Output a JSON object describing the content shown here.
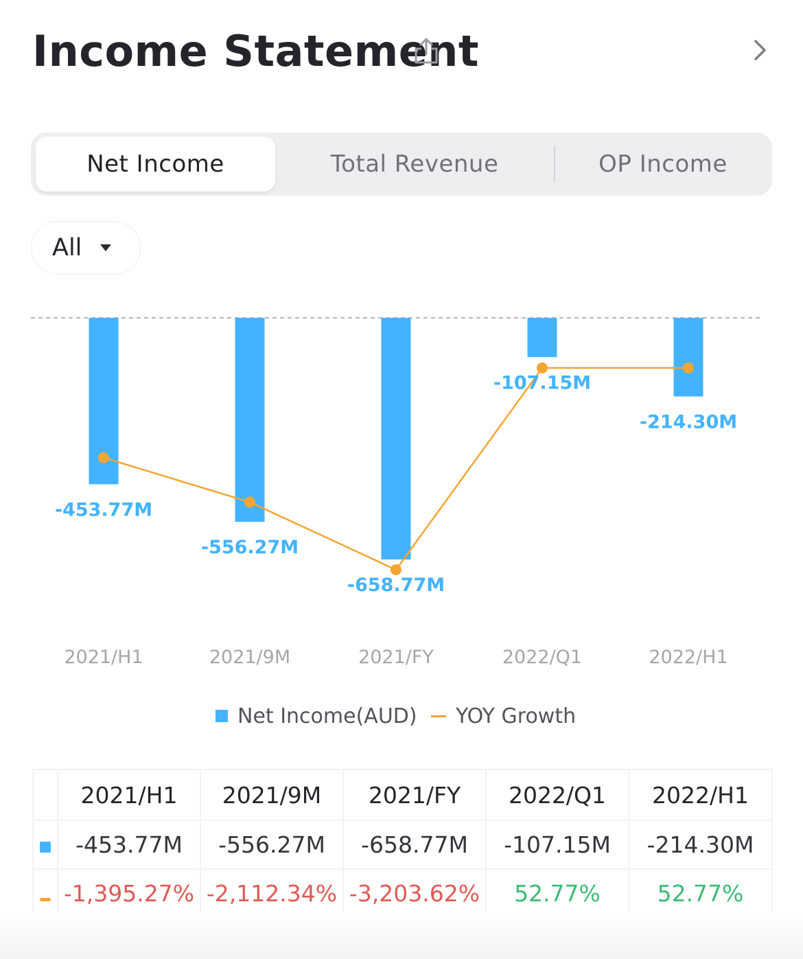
{
  "header": {
    "title": "Income Statement",
    "share_icon": "share-icon",
    "chevron_icon": "chevron-right-icon"
  },
  "tabs": [
    {
      "label": "Net Income",
      "active": true
    },
    {
      "label": "Total Revenue",
      "active": false
    },
    {
      "label": "OP Income",
      "active": false
    }
  ],
  "filter": {
    "label": "All",
    "icon": "caret-down-icon"
  },
  "colors": {
    "bar": "#44b3ff",
    "line": "#f4a534",
    "negative": "#e05a55",
    "positive": "#3ebb76"
  },
  "chart_data": {
    "type": "bar",
    "categories": [
      "2021/H1",
      "2021/9M",
      "2021/FY",
      "2022/Q1",
      "2022/H1"
    ],
    "series": [
      {
        "name": "Net Income(AUD)",
        "type": "bar",
        "values": [
          -453.77,
          -556.27,
          -658.77,
          -107.15,
          -214.3
        ],
        "labels": [
          "-453.77M",
          "-556.27M",
          "-658.77M",
          "-107.15M",
          "-214.30M"
        ]
      },
      {
        "name": "YOY Growth",
        "type": "line",
        "values": [
          -1395.27,
          -2112.34,
          -3203.62,
          52.77,
          52.77
        ]
      }
    ],
    "zero_line": "dashed",
    "legend_position": "bottom"
  },
  "legend": {
    "bar_label": "Net Income(AUD)",
    "line_label": "YOY Growth"
  },
  "table": {
    "headers": [
      "2021/H1",
      "2021/9M",
      "2021/FY",
      "2022/Q1",
      "2022/H1"
    ],
    "net_income": [
      "-453.77M",
      "-556.27M",
      "-658.77M",
      "-107.15M",
      "-214.30M"
    ],
    "yoy_growth": [
      "-1,395.27%",
      "-2,112.34%",
      "-3,203.62%",
      "52.77%",
      "52.77%"
    ]
  }
}
